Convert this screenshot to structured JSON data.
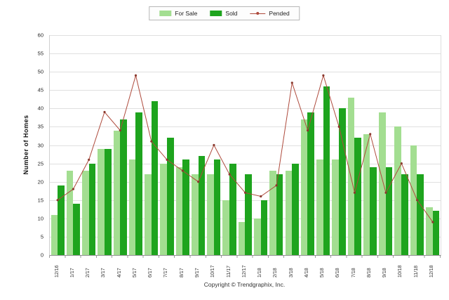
{
  "legend": {
    "items": [
      {
        "label": "For Sale",
        "marker": "swatch",
        "color": "#a3de91"
      },
      {
        "label": "Sold",
        "marker": "swatch",
        "color": "#1ea41e"
      },
      {
        "label": "Pended",
        "marker": "line",
        "color": "#ae4a3c"
      }
    ]
  },
  "y_axis": {
    "label": "Number of Homes",
    "ticks": [
      0,
      5,
      10,
      15,
      20,
      25,
      30,
      35,
      40,
      45,
      50,
      55,
      60
    ]
  },
  "footer": {
    "copyright": "Copyright © Trendgraphix, Inc."
  },
  "chart_data": {
    "type": "bar",
    "subtype": "grouped-bars-with-line-overlay",
    "title": "",
    "xlabel": "",
    "ylabel": "Number of Homes",
    "ylim": [
      0,
      60
    ],
    "ytick_step": 5,
    "grid": true,
    "legend_position": "top-center",
    "categories": [
      "12/16",
      "1/17",
      "2/17",
      "3/17",
      "4/17",
      "5/17",
      "6/17",
      "7/17",
      "8/17",
      "9/17",
      "10/17",
      "11/17",
      "12/17",
      "1/18",
      "2/18",
      "3/18",
      "4/18",
      "5/18",
      "6/18",
      "7/18",
      "8/18",
      "9/18",
      "10/18",
      "11/18",
      "12/18"
    ],
    "series": [
      {
        "name": "For Sale",
        "type": "bar",
        "color": "#a3de91",
        "values": [
          11,
          23,
          23,
          29,
          34,
          26,
          22,
          25,
          24,
          22,
          22,
          15,
          9,
          10,
          23,
          23,
          37,
          26,
          26,
          43,
          33,
          39,
          35,
          30,
          13
        ]
      },
      {
        "name": "Sold",
        "type": "bar",
        "color": "#1ea41e",
        "values": [
          19,
          14,
          25,
          29,
          37,
          39,
          42,
          32,
          26,
          27,
          26,
          25,
          22,
          15,
          22,
          25,
          39,
          46,
          40,
          32,
          24,
          24,
          22,
          22,
          12
        ]
      },
      {
        "name": "Pended",
        "type": "line",
        "color": "#ae4a3c",
        "marker_color": "#8b3a2e",
        "values": [
          15,
          18,
          26,
          39,
          34,
          49,
          31,
          26,
          23,
          20,
          30,
          22,
          17,
          16,
          19,
          47,
          34,
          49,
          35,
          17,
          33,
          17,
          25,
          15,
          9
        ]
      }
    ]
  }
}
